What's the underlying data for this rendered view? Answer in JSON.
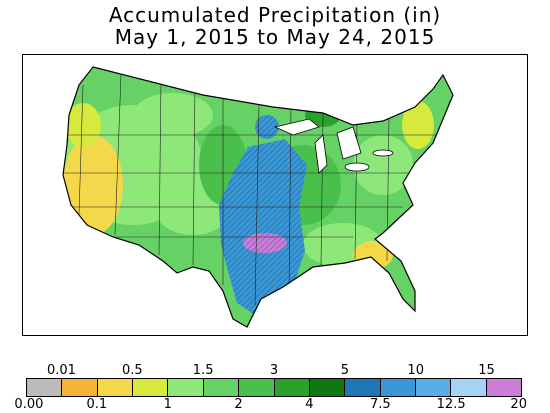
{
  "title": {
    "line1": "Accumulated Precipitation (in)",
    "line2": "May 1, 2015 to May 24, 2015"
  },
  "legend": {
    "colors": [
      "#bbbbbb",
      "#f7b23a",
      "#f3d94a",
      "#d6e93c",
      "#8de779",
      "#66d266",
      "#4bbf4b",
      "#2aa12a",
      "#107810",
      "#1f78b4",
      "#3a98d6",
      "#5aaee8",
      "#a6d3f3",
      "#cc7dd8"
    ],
    "top_labels": [
      "0.01",
      "0.5",
      "1.5",
      "3",
      "5",
      "10",
      "15"
    ],
    "bottom_labels": [
      "0.00",
      "0.1",
      "1",
      "2",
      "4",
      "7.5",
      "12.5",
      "20"
    ]
  },
  "map": {
    "water_color": "#ffffff",
    "border_color": "#000000"
  }
}
